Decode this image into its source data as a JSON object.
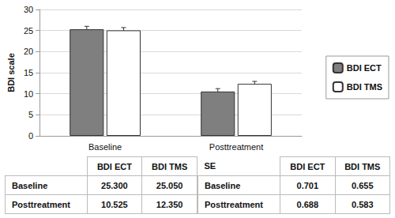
{
  "chart_data": {
    "type": "bar",
    "categories": [
      "Baseline",
      "Posttreatment"
    ],
    "ylabel": "BDI scale",
    "series": [
      {
        "name": "BDI ECT",
        "color": "#7f7f7f",
        "values": [
          25.3,
          10.525
        ],
        "errors": [
          0.701,
          0.688
        ]
      },
      {
        "name": "BDI TMS",
        "color": "#ffffff",
        "values": [
          25.05,
          12.35
        ],
        "errors": [
          0.655,
          0.583
        ]
      }
    ],
    "ylim": [
      0,
      30
    ],
    "yticks": [
      0,
      5,
      10,
      15,
      20,
      25,
      30
    ],
    "grid": true,
    "legend": "right"
  },
  "tables": [
    {
      "header": [
        null,
        "BDI ECT",
        "BDI TMS"
      ],
      "rows": [
        [
          "Baseline",
          "25.300",
          "25.050"
        ],
        [
          "Posttreatment",
          "10.525",
          "12.350"
        ]
      ]
    },
    {
      "header": [
        "SE",
        "BDI ECT",
        "BDI TMS"
      ],
      "rows": [
        [
          "Baseline",
          "0.701",
          "0.655"
        ],
        [
          "Posttreatment",
          "0.688",
          "0.583"
        ]
      ]
    }
  ]
}
